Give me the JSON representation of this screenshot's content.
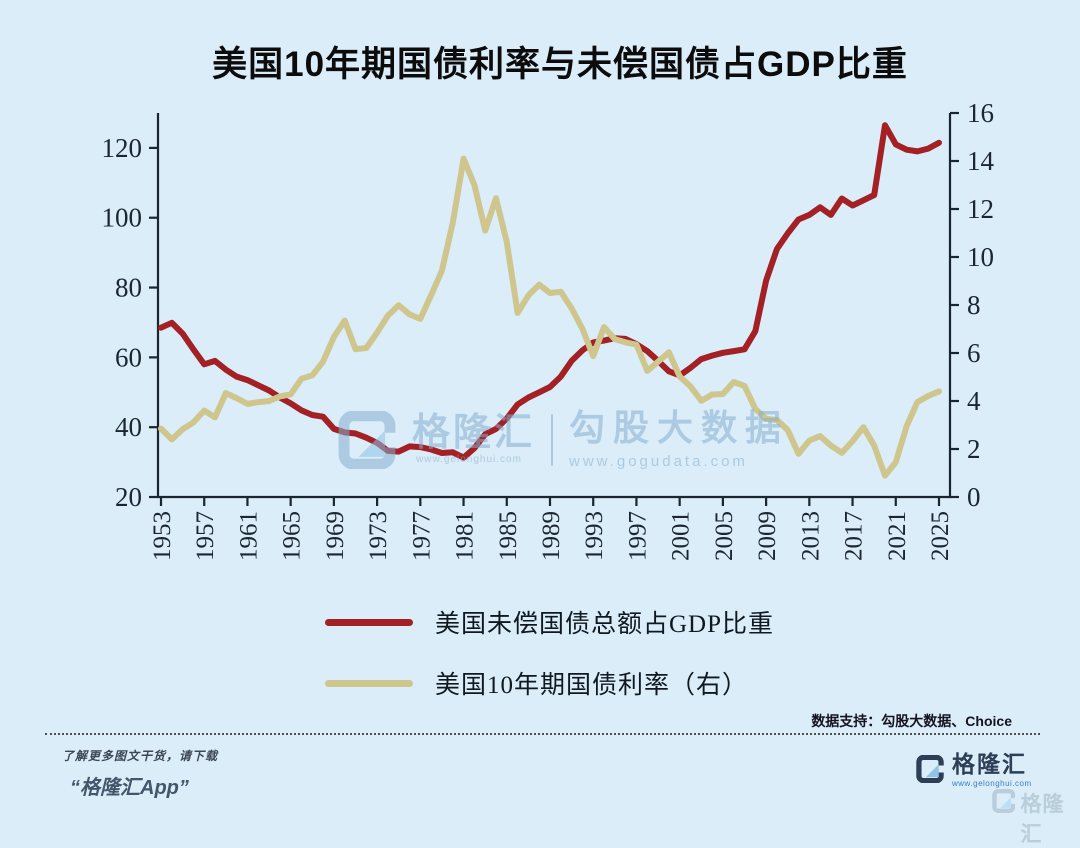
{
  "page": {
    "background": "#DAEDF8"
  },
  "title": "美国10年期国债利率与未偿国债占GDP比重",
  "legend": [
    {
      "label": "美国未偿国债总额占GDP比重",
      "color": "#A32024"
    },
    {
      "label": "美国10年期国债利率（右）",
      "color": "#CFC68E"
    }
  ],
  "watermark_center": {
    "brand": "格隆汇",
    "brand_url": "www.gelonghui.com",
    "product": "勾股大数据",
    "product_url": "www.gogudata.com"
  },
  "footer": {
    "data_support": "数据支持：勾股大数据、Choice",
    "promo_line1": "了解更多图文干货，请下载",
    "promo_line2": "“格隆汇App”",
    "brand_name": "格隆汇",
    "brand_url": "www.gelonghui.com",
    "corner_brand": "格隆汇"
  },
  "chart_data": {
    "type": "line",
    "title": "美国10年期国债利率与未偿国债占GDP比重",
    "grid": false,
    "legend_position": "bottom",
    "x_axis": {
      "ticks": [
        1953,
        1957,
        1961,
        1965,
        1969,
        1973,
        1977,
        1981,
        1985,
        1989,
        1993,
        1997,
        2001,
        2005,
        2009,
        2013,
        2017,
        2021,
        2025
      ],
      "range": [
        1953,
        2025
      ],
      "tick_rotation": -90
    },
    "left_axis": {
      "ticks": [
        20,
        40,
        60,
        80,
        100,
        120
      ],
      "range": [
        20,
        130
      ]
    },
    "right_axis": {
      "ticks": [
        0,
        2,
        4,
        6,
        8,
        10,
        12,
        14,
        16
      ],
      "range": [
        0,
        16
      ]
    },
    "x": [
      1953,
      1954,
      1955,
      1956,
      1957,
      1958,
      1959,
      1960,
      1961,
      1962,
      1963,
      1964,
      1965,
      1966,
      1967,
      1968,
      1969,
      1970,
      1971,
      1972,
      1973,
      1974,
      1975,
      1976,
      1977,
      1978,
      1979,
      1980,
      1981,
      1982,
      1983,
      1984,
      1985,
      1986,
      1987,
      1988,
      1989,
      1990,
      1991,
      1992,
      1993,
      1994,
      1995,
      1996,
      1997,
      1998,
      1999,
      2000,
      2001,
      2002,
      2003,
      2004,
      2005,
      2006,
      2007,
      2008,
      2009,
      2010,
      2011,
      2012,
      2013,
      2014,
      2015,
      2016,
      2017,
      2018,
      2019,
      2020,
      2021,
      2022,
      2023,
      2024,
      2025
    ],
    "series": [
      {
        "name": "美国未偿国债总额占GDP比重",
        "axis": "left",
        "unit": "%",
        "color": "#A32024",
        "values": [
          68.5,
          69.9,
          66.8,
          62.3,
          58.0,
          59.0,
          56.5,
          54.5,
          53.5,
          52.0,
          50.5,
          48.5,
          46.8,
          44.8,
          43.5,
          43.0,
          39.5,
          38.5,
          38.2,
          37.0,
          35.5,
          33.2,
          33.0,
          34.5,
          34.3,
          33.6,
          32.6,
          32.8,
          31.3,
          34.0,
          38.0,
          39.5,
          42.5,
          46.5,
          48.5,
          50.0,
          51.5,
          54.5,
          59.0,
          62.0,
          64.3,
          64.8,
          65.5,
          65.3,
          63.8,
          61.8,
          59.0,
          56.0,
          54.8,
          57.0,
          59.5,
          60.5,
          61.3,
          61.8,
          62.3,
          67.5,
          82.0,
          91.0,
          95.5,
          99.5,
          100.8,
          103.0,
          100.8,
          105.5,
          103.5,
          105.0,
          106.5,
          126.5,
          121.0,
          119.5,
          119.0,
          119.8,
          121.5
        ]
      },
      {
        "name": "美国10年期国债利率（右）",
        "axis": "right",
        "unit": "%",
        "color": "#CFC68E",
        "values": [
          2.85,
          2.4,
          2.82,
          3.11,
          3.6,
          3.32,
          4.33,
          4.12,
          3.88,
          3.95,
          4.0,
          4.19,
          4.28,
          4.93,
          5.07,
          5.64,
          6.67,
          7.35,
          6.16,
          6.21,
          6.85,
          7.56,
          7.99,
          7.61,
          7.42,
          8.41,
          9.43,
          11.43,
          14.1,
          13.0,
          11.1,
          12.45,
          10.62,
          7.67,
          8.4,
          8.85,
          8.5,
          8.55,
          7.86,
          7.01,
          5.87,
          7.08,
          6.58,
          6.44,
          6.35,
          5.26,
          5.64,
          6.03,
          5.02,
          4.61,
          4.01,
          4.27,
          4.29,
          4.79,
          4.63,
          3.67,
          3.26,
          3.21,
          2.79,
          1.8,
          2.35,
          2.54,
          2.14,
          1.84,
          2.33,
          2.91,
          2.14,
          0.89,
          1.45,
          2.95,
          3.96,
          4.21,
          4.4
        ]
      }
    ]
  }
}
